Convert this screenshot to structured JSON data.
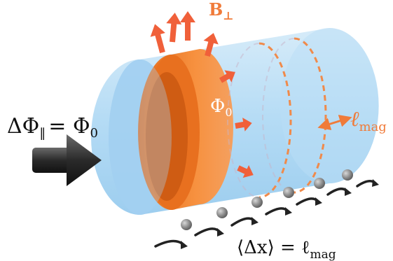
{
  "labels": {
    "flux_parallel": "ΔΦ‖ = Φ₀",
    "flux_parallel_lhs": "ΔΦ",
    "flux_parallel_sub": "‖",
    "flux_parallel_rhs": "= Φ",
    "flux_parallel_rhs_sub": "0",
    "b_perp": "B",
    "b_perp_sub": "⊥",
    "phi0": "Φ",
    "phi0_sub": "0",
    "l_mag": "ℓ",
    "l_mag_sub": "mag",
    "displacement": "⟨Δx⟩ = ℓ",
    "displacement_sub": "mag"
  },
  "colors": {
    "cylinder_fill": "#9fd0f0",
    "cylinder_edge": "#7fbfe8",
    "flux_band": "#f58a3c",
    "flux_band_dark": "#e86e1f",
    "arrow_red": "#f0603a",
    "label_orange": "#f07b3a",
    "particle": "#8a8a8a",
    "cone": "#333333"
  }
}
